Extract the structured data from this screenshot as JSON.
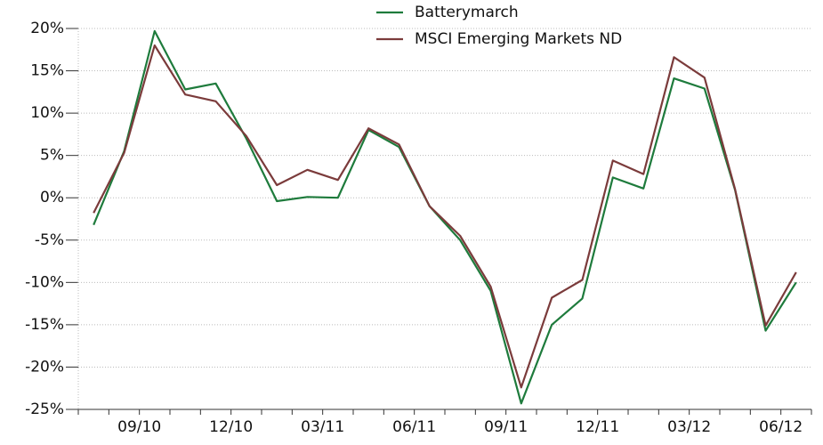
{
  "chart_data": {
    "type": "line",
    "categories": [
      null,
      null,
      "09/10",
      null,
      null,
      "12/10",
      null,
      null,
      "03/11",
      null,
      null,
      "06/11",
      null,
      null,
      "09/11",
      null,
      null,
      "12/11",
      null,
      null,
      "03/12",
      null,
      null,
      "06/12"
    ],
    "series": [
      {
        "name": "Batterymarch",
        "color": "#1e7b3c",
        "values": [
          -3.2,
          5.5,
          19.7,
          12.8,
          13.5,
          7.0,
          -0.4,
          0.1,
          0.0,
          8.0,
          6.0,
          -1.0,
          -5.0,
          -11.0,
          -24.3,
          -15.0,
          -11.9,
          2.4,
          1.1,
          14.1,
          12.9,
          0.9,
          -15.7,
          -10.0
        ]
      },
      {
        "name": "MSCI Emerging Markets ND",
        "color": "#7b3b3b",
        "values": [
          -1.8,
          5.3,
          18.0,
          12.2,
          11.4,
          7.3,
          1.5,
          3.3,
          2.1,
          8.2,
          6.3,
          -1.0,
          -4.5,
          -10.5,
          -22.4,
          -11.8,
          -9.7,
          4.4,
          2.8,
          16.6,
          14.2,
          1.0,
          -15.1,
          -8.8
        ]
      }
    ],
    "ylim": [
      -25,
      20
    ],
    "yticks": [
      {
        "value": -25,
        "label": "-25%"
      },
      {
        "value": -20,
        "label": "-20%"
      },
      {
        "value": -15,
        "label": "-15%"
      },
      {
        "value": -10,
        "label": "-10%"
      },
      {
        "value": -5,
        "label": "-5%"
      },
      {
        "value": 0,
        "label": "0%"
      },
      {
        "value": 5,
        "label": "5%"
      },
      {
        "value": 10,
        "label": "10%"
      },
      {
        "value": 15,
        "label": "15%"
      },
      {
        "value": 20,
        "label": "20%"
      }
    ],
    "grid": true,
    "legend": "top"
  }
}
